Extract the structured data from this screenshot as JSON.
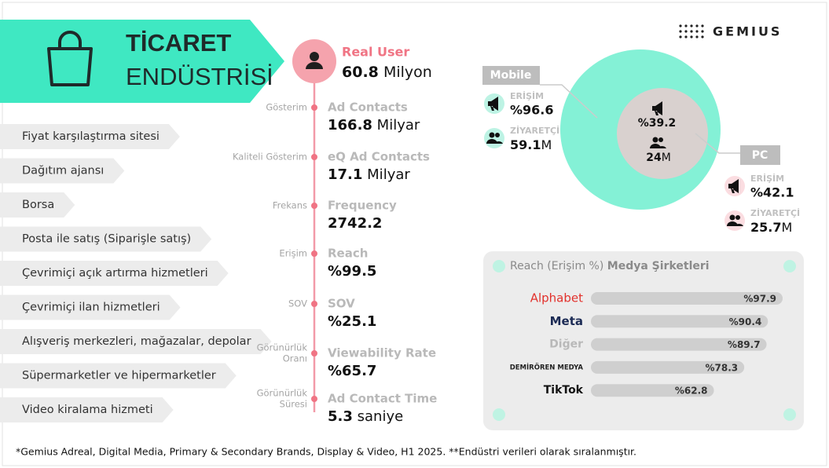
{
  "brand": "GEMIUS",
  "banner": {
    "title_line1": "TİCARET",
    "title_line2": "ENDÜSTRİSİ"
  },
  "categories": [
    "Fiyat karşılaştırma sitesi",
    "Dağıtım ajansı",
    "Borsa",
    "Posta ile satış (Siparişle satış)",
    "Çevrimiçi açık artırma hizmetleri",
    "Çevrimiçi ilan hizmetleri",
    "Alışveriş merkezleri, mağazalar, depolar",
    "Süpermarketler ve hipermarketler",
    "Video kiralama hizmeti"
  ],
  "real_user": {
    "title": "Real User",
    "value": 60.8,
    "unit": "Milyon"
  },
  "metrics": [
    {
      "label_lines": [
        "Gösterim"
      ],
      "title": "Ad Contacts",
      "value": 166.8,
      "unit": "Milyar"
    },
    {
      "label_lines": [
        "Kaliteli Gösterim"
      ],
      "title": "eQ Ad Contacts",
      "value": 17.1,
      "unit": "Milyar"
    },
    {
      "label_lines": [
        "Frekans"
      ],
      "title": "Frequency",
      "value": 2742.2
    },
    {
      "label_lines": [
        "Erişim"
      ],
      "title": "Reach",
      "value": "%99.5"
    },
    {
      "label_lines": [
        "SOV"
      ],
      "title": "SOV",
      "value": "%25.1"
    },
    {
      "label_lines": [
        "Görünürlük",
        "Oranı"
      ],
      "title": "Viewability Rate",
      "value": "%65.7"
    },
    {
      "label_lines": [
        "Görünürlük",
        "Süresi"
      ],
      "title": "Ad Contact Time",
      "value": 5.3,
      "unit": "saniye"
    }
  ],
  "venn": {
    "mobile": {
      "label": "Mobile",
      "reach_label": "ERİŞİM",
      "reach": "%96.6",
      "visitor_label": "ZİYARETÇİ",
      "visitors": 59.1,
      "unit": "M"
    },
    "overlap": {
      "reach": "%39.2",
      "visitors": 24,
      "unit": "M"
    },
    "pc": {
      "label": "PC",
      "reach_label": "ERİŞİM",
      "reach": "%42.1",
      "visitor_label": "ZİYARETÇİ",
      "visitors": 25.7,
      "unit": "M"
    }
  },
  "media": {
    "title_regular": "Reach (Erişim %)",
    "title_bold": "Medya Şirketleri",
    "categories": [
      "Alphabet",
      "Meta",
      "Diğer",
      "DEMİRÖREN MEDYA",
      "TikTok"
    ],
    "values": [
      97.9,
      90.4,
      89.7,
      78.3,
      62.8
    ],
    "value_labels": [
      "%97.9",
      "%90.4",
      "%89.7",
      "%78.3",
      "%62.8"
    ]
  },
  "footnote": "*Gemius Adreal, Digital Media, Primary & Secondary Brands, Display & Video, H1 2025.  **Endüstri verileri olarak sıralanmıştır."
}
